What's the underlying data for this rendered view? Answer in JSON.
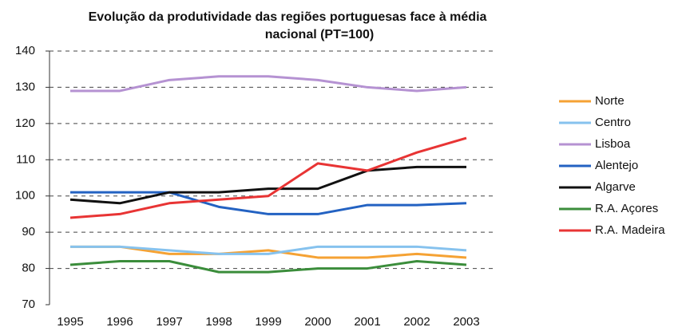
{
  "chart_data": {
    "type": "line",
    "title": [
      "Evolução da produtividade das regiões portuguesas face à média",
      "nacional (PT=100)"
    ],
    "categories": [
      "1995",
      "1996",
      "1997",
      "1998",
      "1999",
      "2000",
      "2001",
      "2002",
      "2003"
    ],
    "series": [
      {
        "name": "Norte",
        "color": "#f5a234",
        "values": [
          86,
          86,
          84,
          84,
          85,
          83,
          83,
          84,
          83
        ]
      },
      {
        "name": "Centro",
        "color": "#86c2ee",
        "values": [
          86,
          86,
          85,
          84,
          84,
          86,
          86,
          86,
          85
        ]
      },
      {
        "name": "Lisboa",
        "color": "#b592d2",
        "values": [
          129,
          129,
          132,
          133,
          133,
          132,
          130,
          129,
          130
        ]
      },
      {
        "name": "Alentejo",
        "color": "#2362c2",
        "values": [
          101,
          101,
          101,
          97,
          95,
          95,
          97.5,
          97.5,
          98
        ]
      },
      {
        "name": "Algarve",
        "color": "#111111",
        "values": [
          99,
          98,
          101,
          101,
          102,
          102,
          107,
          108,
          108
        ]
      },
      {
        "name": "R.A. Açores",
        "color": "#3b8d3b",
        "values": [
          81,
          82,
          82,
          79,
          79,
          80,
          80,
          82,
          81
        ]
      },
      {
        "name": "R.A. Madeira",
        "color": "#e83434",
        "values": [
          94,
          95,
          98,
          99,
          100,
          109,
          107,
          112,
          116
        ]
      }
    ],
    "ylim": [
      70,
      140
    ],
    "yticks": [
      70,
      80,
      90,
      100,
      110,
      120,
      130,
      140
    ],
    "grid": true,
    "legend": "right"
  }
}
